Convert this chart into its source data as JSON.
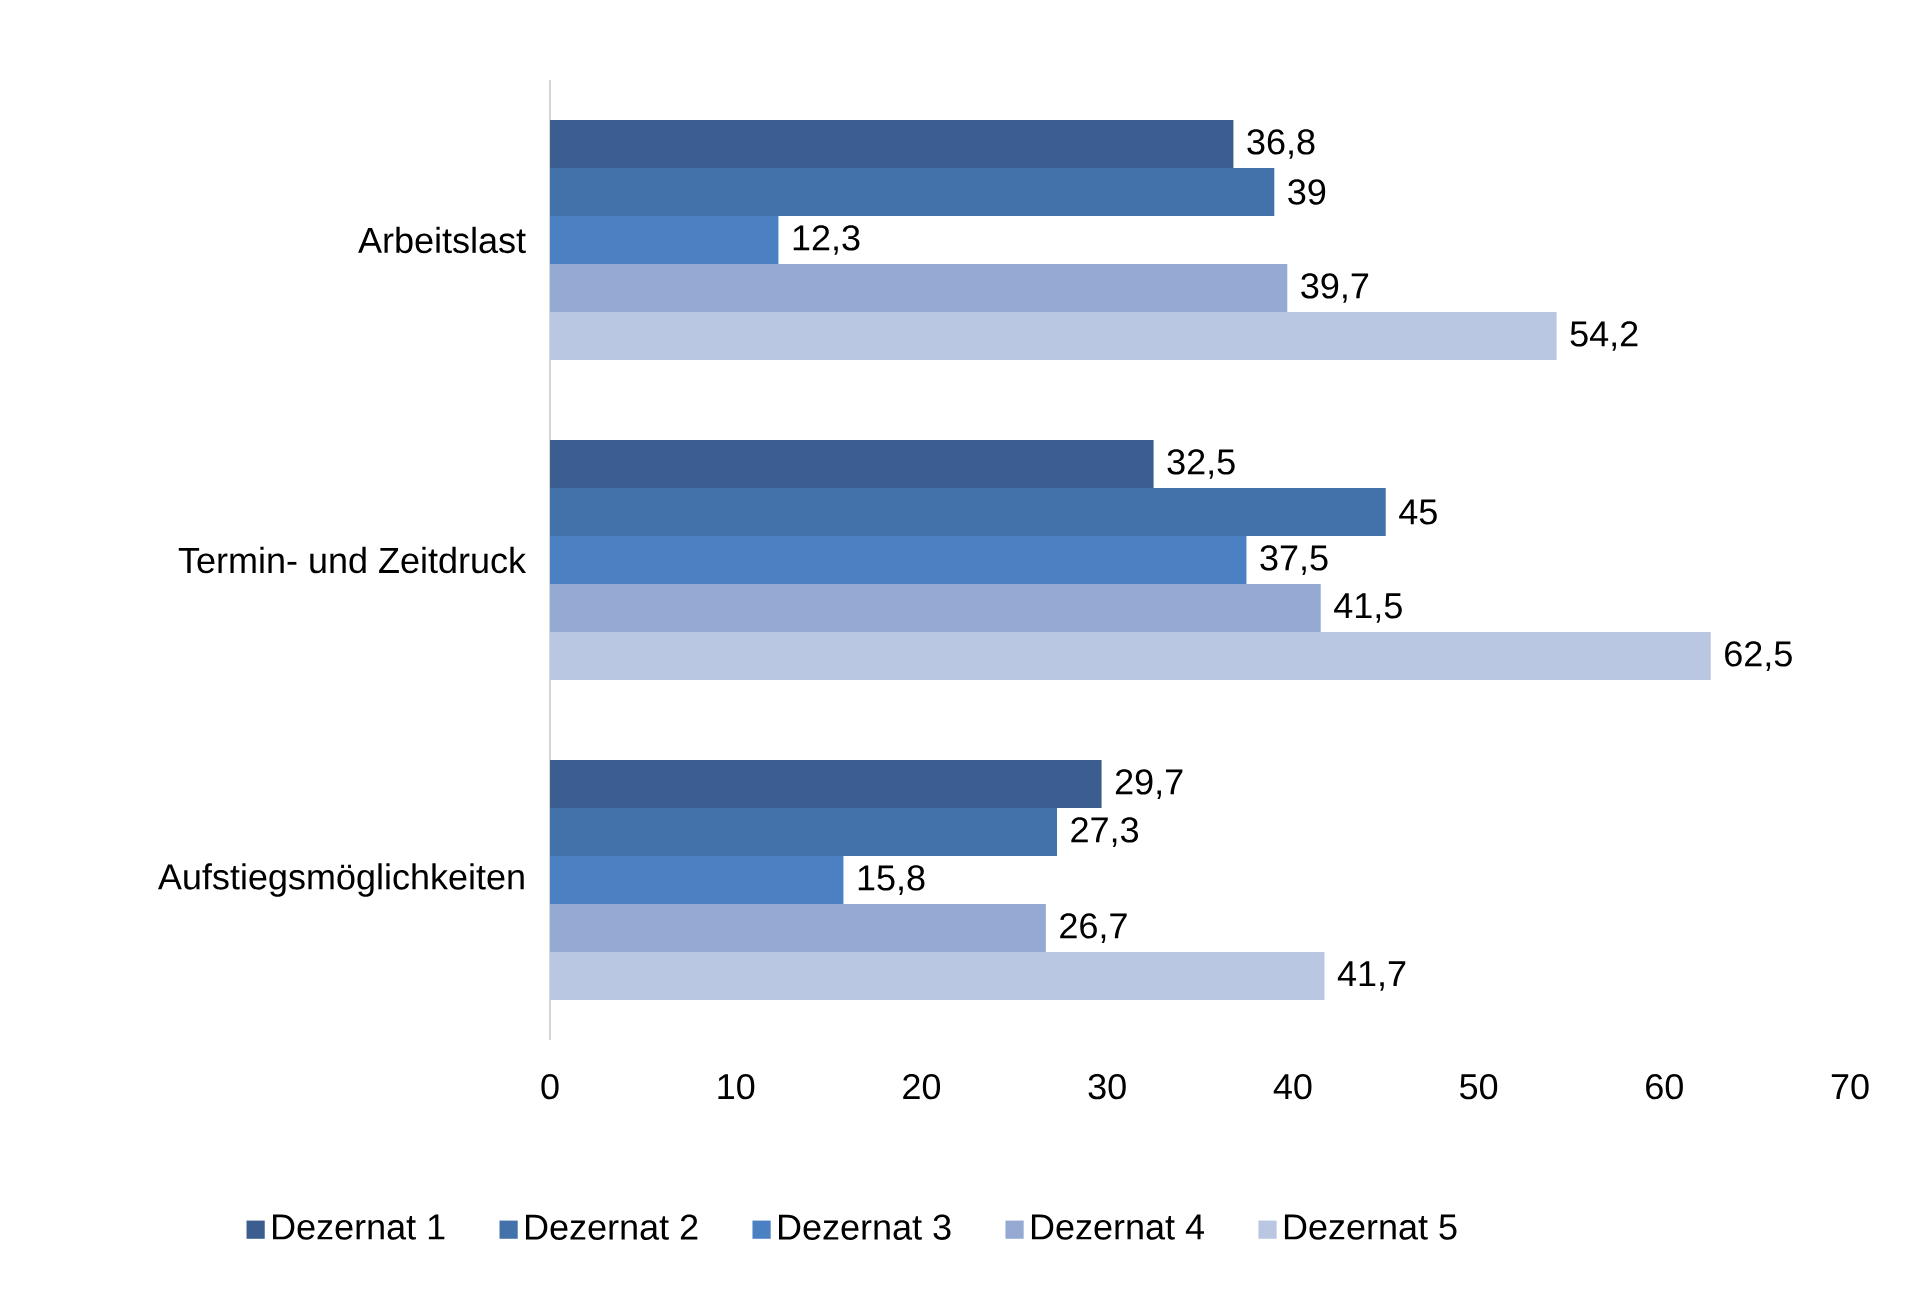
{
  "chart_data": {
    "type": "bar",
    "orientation": "horizontal",
    "categories": [
      "Arbeitslast",
      "Termin- und Zeitdruck",
      "Aufstiegsmöglichkeiten"
    ],
    "series": [
      {
        "name": "Dezernat 1",
        "color": "#3b5d8f",
        "values": [
          36.8,
          32.5,
          29.7
        ],
        "value_labels": [
          "36,8",
          "32,5",
          "29,7"
        ]
      },
      {
        "name": "Dezernat 2",
        "color": "#4371aa",
        "values": [
          39,
          45,
          27.3
        ],
        "value_labels": [
          "39",
          "45",
          "27,3"
        ]
      },
      {
        "name": "Dezernat 3",
        "color": "#4b81c2",
        "values": [
          12.3,
          37.5,
          15.8
        ],
        "value_labels": [
          "12,3",
          "37,5",
          "15,8"
        ]
      },
      {
        "name": "Dezernat 4",
        "color": "#94aad3",
        "values": [
          39.7,
          41.5,
          26.7
        ],
        "value_labels": [
          "39,7",
          "41,5",
          "26,7"
        ]
      },
      {
        "name": "Dezernat 5",
        "color": "#bac7e2",
        "values": [
          54.2,
          62.5,
          41.7
        ],
        "value_labels": [
          "54,2",
          "62,5",
          "41,7"
        ]
      }
    ],
    "xlim": [
      0,
      70
    ],
    "xticks": [
      0,
      10,
      20,
      30,
      40,
      50,
      60,
      70
    ],
    "grid": false,
    "legend": "bottom"
  }
}
